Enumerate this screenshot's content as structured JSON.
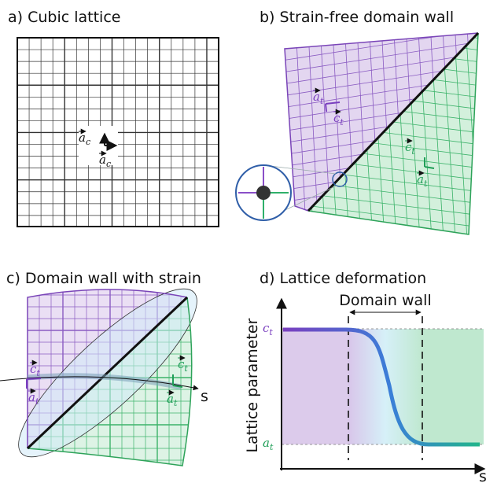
{
  "panels": [
    {
      "label": "a) Cubic lattice",
      "vectors": [
        {
          "symbol": "a",
          "subscript": "c"
        },
        {
          "symbol": "a",
          "subscript": "c"
        }
      ]
    },
    {
      "label": "b) Strain-free domain wall",
      "vectors": [
        {
          "symbol": "a",
          "subscript": "t"
        },
        {
          "symbol": "c",
          "subscript": "t"
        },
        {
          "symbol": "c",
          "subscript": "t"
        },
        {
          "symbol": "a",
          "subscript": "t"
        }
      ]
    },
    {
      "label": "c) Domain wall with strain",
      "vectors": [
        {
          "symbol": "c",
          "subscript": "t"
        },
        {
          "symbol": "a",
          "subscript": "t"
        },
        {
          "symbol": "c",
          "subscript": "t"
        },
        {
          "symbol": "a",
          "subscript": "t"
        }
      ],
      "axis_label": "s"
    },
    {
      "label": "d) Lattice deformation",
      "region_label": "Domain wall",
      "y_axis_label": "Lattice parameter",
      "x_axis_label": "s",
      "y_levels": [
        {
          "symbol": "c",
          "subscript": "t"
        },
        {
          "symbol": "a",
          "subscript": "t"
        }
      ]
    }
  ]
}
